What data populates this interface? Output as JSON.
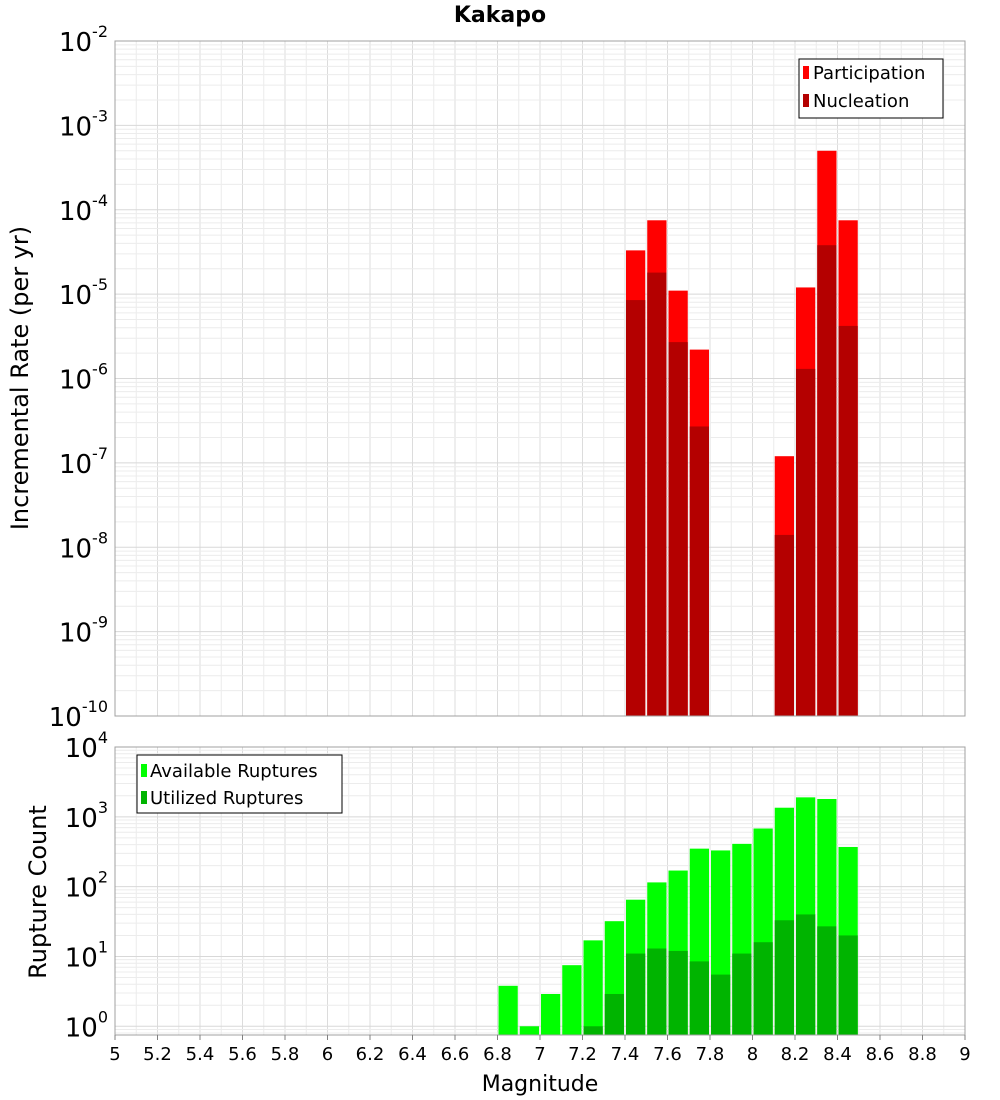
{
  "chart_data": [
    {
      "type": "bar",
      "title": "Kakapo",
      "xlabel": "",
      "ylabel": "Incremental Rate (per yr)",
      "yscale": "log",
      "ylim": [
        1e-10,
        0.01
      ],
      "xlim": [
        5,
        9
      ],
      "grid": true,
      "legend_placement": "top-right",
      "bar_width": 0.1,
      "yticks": [
        {
          "base": "10",
          "exp": "-2",
          "value": 0.01
        },
        {
          "base": "10",
          "exp": "-3",
          "value": 0.001
        },
        {
          "base": "10",
          "exp": "-4",
          "value": 0.0001
        },
        {
          "base": "10",
          "exp": "-5",
          "value": 1e-05
        },
        {
          "base": "10",
          "exp": "-6",
          "value": 1e-06
        },
        {
          "base": "10",
          "exp": "-7",
          "value": 1e-07
        },
        {
          "base": "10",
          "exp": "-8",
          "value": 1e-08
        },
        {
          "base": "10",
          "exp": "-9",
          "value": 1e-09
        },
        {
          "base": "10",
          "exp": "-10",
          "value": 1e-10
        }
      ],
      "series": [
        {
          "name": "Participation",
          "color": "#ff0000",
          "x": [
            7.45,
            7.55,
            7.65,
            7.75,
            8.15,
            8.25,
            8.35,
            8.45
          ],
          "values": [
            3.3e-05,
            7.5e-05,
            1.1e-05,
            2.2e-06,
            1.2e-07,
            1.2e-05,
            0.0005,
            7.5e-05
          ]
        },
        {
          "name": "Nucleation",
          "color": "#b40000",
          "x": [
            7.45,
            7.55,
            7.65,
            7.75,
            8.15,
            8.25,
            8.35,
            8.45
          ],
          "values": [
            8.5e-06,
            1.8e-05,
            2.7e-06,
            2.7e-07,
            1.4e-08,
            1.3e-06,
            3.8e-05,
            4.2e-06
          ]
        }
      ]
    },
    {
      "type": "bar",
      "title": "",
      "xlabel": "Magnitude",
      "ylabel": "Rupture Count",
      "yscale": "log",
      "ylim": [
        0.75,
        10000
      ],
      "xlim": [
        5,
        9
      ],
      "grid": true,
      "legend_placement": "top-left",
      "bar_width": 0.1,
      "xticks": [
        "5",
        "5.2",
        "5.4",
        "5.6",
        "5.8",
        "6",
        "6.2",
        "6.4",
        "6.6",
        "6.8",
        "7",
        "7.2",
        "7.4",
        "7.6",
        "7.8",
        "8",
        "8.2",
        "8.4",
        "8.6",
        "8.8",
        "9"
      ],
      "yticks": [
        {
          "base": "10",
          "exp": "4",
          "value": 10000
        },
        {
          "base": "10",
          "exp": "3",
          "value": 1000
        },
        {
          "base": "10",
          "exp": "2",
          "value": 100
        },
        {
          "base": "10",
          "exp": "1",
          "value": 10
        },
        {
          "base": "10",
          "exp": "0",
          "value": 1
        }
      ],
      "series": [
        {
          "name": "Available Ruptures",
          "color": "#00ff00",
          "x": [
            6.85,
            6.95,
            7.05,
            7.15,
            7.25,
            7.35,
            7.45,
            7.55,
            7.65,
            7.75,
            7.85,
            7.95,
            8.05,
            8.15,
            8.25,
            8.35,
            8.45
          ],
          "values": [
            3.8,
            1,
            2.9,
            7.5,
            17,
            32,
            65,
            115,
            170,
            350,
            330,
            410,
            680,
            1350,
            1900,
            1800,
            370
          ]
        },
        {
          "name": "Utilized Ruptures",
          "color": "#00b400",
          "x": [
            7.25,
            7.35,
            7.45,
            7.55,
            7.65,
            7.75,
            7.85,
            7.95,
            8.05,
            8.15,
            8.25,
            8.35,
            8.45
          ],
          "values": [
            1,
            2.9,
            11,
            13,
            12,
            8.5,
            5.5,
            11,
            16,
            33,
            40,
            27,
            20
          ]
        }
      ]
    }
  ]
}
